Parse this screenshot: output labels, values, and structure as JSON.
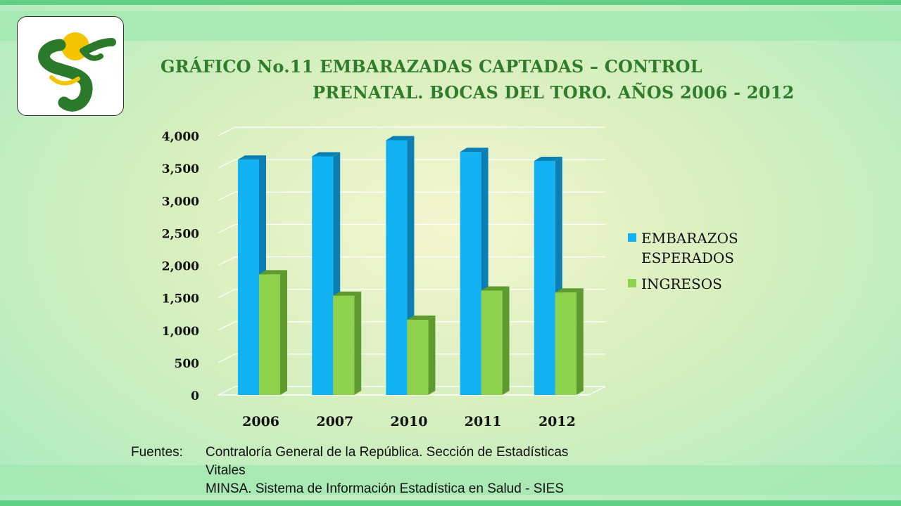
{
  "title": {
    "line1": "GRÁFICO No.11 EMBARAZADAS CAPTADAS – CONTROL",
    "line2": "PRENATAL. BOCAS DEL TORO. AÑOS 2006 - 2012"
  },
  "logo": {
    "icon": "caduceus-s-snake-logo"
  },
  "colors": {
    "esperados": "#13b2f2",
    "esperados_side": "#0a7fb3",
    "ingresos": "#8ed24e",
    "ingresos_side": "#5f9a2e",
    "title": "#2f7d2b"
  },
  "chart_data": {
    "type": "bar",
    "title": "GRÁFICO No.11 EMBARAZADAS CAPTADAS – CONTROL PRENATAL. BOCAS DEL TORO. AÑOS 2006 - 2012",
    "categories": [
      "2006",
      "2007",
      "2010",
      "2011",
      "2012"
    ],
    "series": [
      {
        "name": "EMBARAZOS ESPERADOS",
        "values": [
          3630,
          3680,
          3930,
          3750,
          3610
        ]
      },
      {
        "name": "INGRESOS",
        "values": [
          1860,
          1530,
          1160,
          1610,
          1580
        ]
      }
    ],
    "ylim": [
      0,
      4000
    ],
    "yticks": [
      0,
      500,
      1000,
      1500,
      2000,
      2500,
      3000,
      3500,
      4000
    ],
    "ytick_labels": [
      "0",
      "500",
      "1,000",
      "1,500",
      "2,000",
      "2,500",
      "3,000",
      "3,500",
      "4,000"
    ],
    "legend": [
      "EMBARAZOS ESPERADOS",
      "INGRESOS"
    ],
    "legend_lines": [
      [
        "EMBARAZOS",
        "ESPERADOS"
      ],
      [
        "INGRESOS"
      ]
    ],
    "legend_position": "right",
    "grid": true
  },
  "sources": {
    "label": "Fuentes:",
    "line1": "Contraloría General de la República. Sección de Estadísticas",
    "line2": "Vitales",
    "line3": "MINSA. Sistema de Información Estadística en Salud - SIES"
  }
}
